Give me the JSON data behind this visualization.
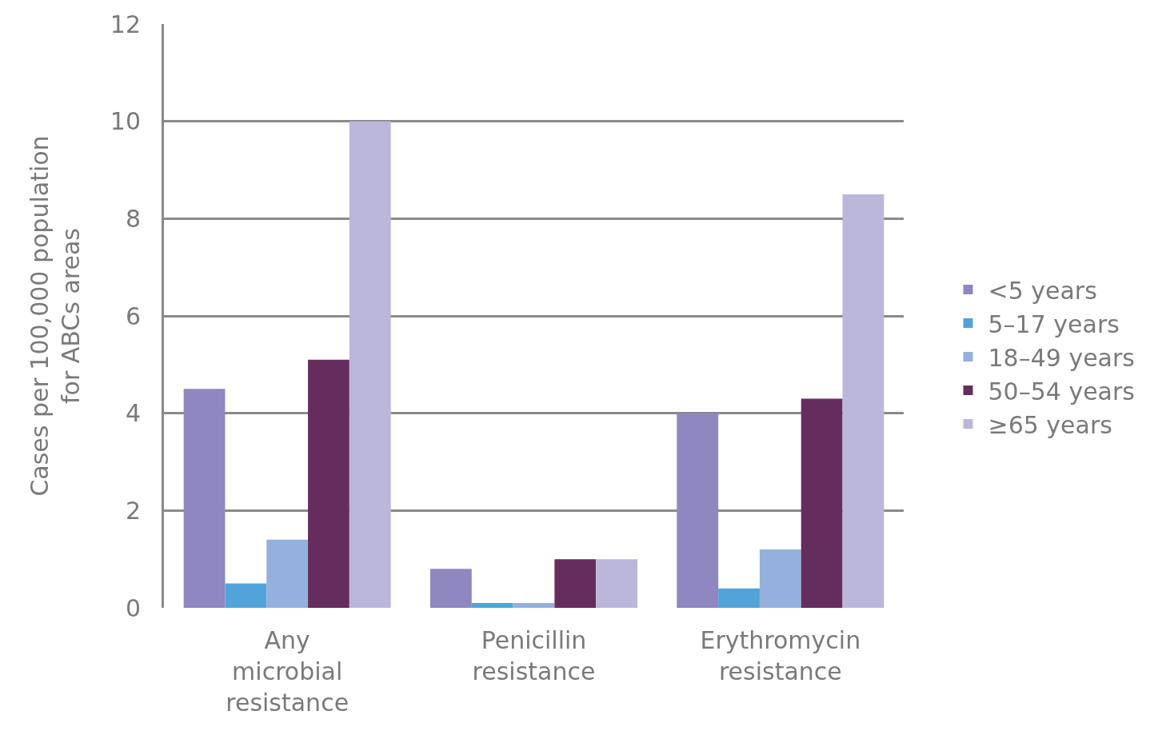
{
  "chart_data": {
    "type": "bar",
    "ylabel": "Cases per 100,000 population for ABCs areas",
    "categories": [
      "Any microbial resistance",
      "Penicillin resistance",
      "Erythromycin resistance"
    ],
    "series": [
      {
        "name": "<5 years",
        "color": "#8e87c0",
        "values": [
          4.5,
          0.8,
          4.0
        ]
      },
      {
        "name": "5–17 years",
        "color": "#52a3da",
        "values": [
          0.5,
          0.1,
          0.4
        ]
      },
      {
        "name": "18–49 years",
        "color": "#94b0dc",
        "values": [
          1.4,
          0.1,
          1.2
        ]
      },
      {
        "name": "50–54 years",
        "color": "#652d5e",
        "values": [
          5.1,
          1.0,
          4.3
        ]
      },
      {
        "name": "≥65 years",
        "color": "#bab7da",
        "values": [
          10.0,
          1.0,
          8.5
        ]
      }
    ],
    "ylim": [
      0,
      12
    ],
    "yticks": [
      0,
      2,
      4,
      6,
      8,
      10,
      12
    ],
    "grid": "y",
    "legend": "right"
  }
}
